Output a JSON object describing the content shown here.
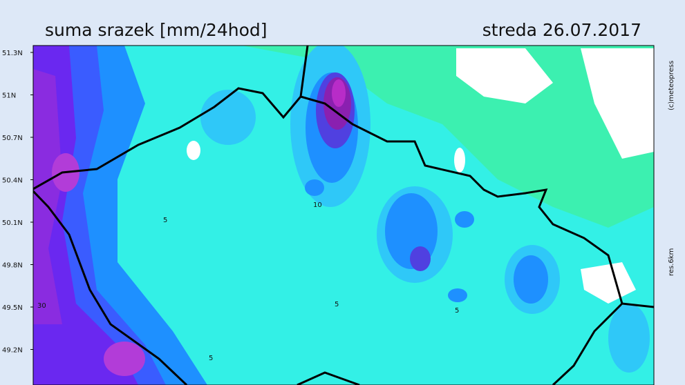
{
  "header": {
    "title": "suma srazek [mm/24hod]",
    "date": "streda 26.07.2017"
  },
  "side_labels": {
    "copyright": "(c)meteopress",
    "resolution": "res.6km"
  },
  "latitude_labels": [
    "51.3N",
    "51N",
    "50.7N",
    "50.4N",
    "50.1N",
    "49.8N",
    "49.5N",
    "49.2N"
  ],
  "contour_labels": [
    "5",
    "10",
    "5",
    "5",
    "5",
    "30"
  ]
}
